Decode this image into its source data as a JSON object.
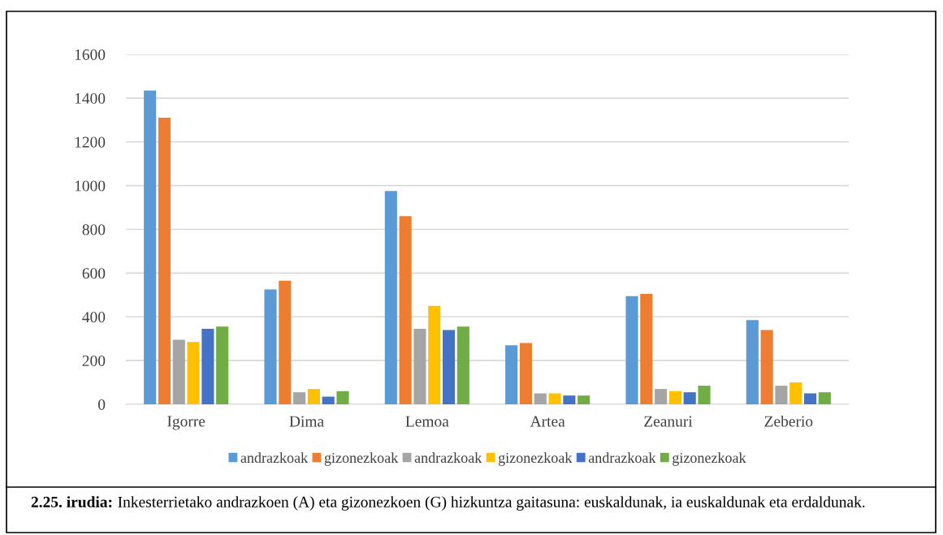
{
  "chart_data": {
    "type": "bar",
    "categories": [
      "Igorre",
      "Dima",
      "Lemoa",
      "Artea",
      "Zeanuri",
      "Zeberio"
    ],
    "series": [
      {
        "name": "andrazkoak",
        "color": "#5b9bd5",
        "values": [
          1435,
          525,
          975,
          270,
          495,
          385
        ]
      },
      {
        "name": "gizonezkoak",
        "color": "#ed7d31",
        "values": [
          1310,
          565,
          860,
          280,
          505,
          340
        ]
      },
      {
        "name": "andrazkoak",
        "color": "#a5a5a5",
        "values": [
          295,
          55,
          345,
          50,
          70,
          85
        ]
      },
      {
        "name": "gizonezkoak",
        "color": "#ffc000",
        "values": [
          285,
          70,
          450,
          50,
          60,
          100
        ]
      },
      {
        "name": "andrazkoak",
        "color": "#4472c4",
        "values": [
          345,
          35,
          340,
          40,
          55,
          50
        ]
      },
      {
        "name": "gizonezkoak",
        "color": "#70ad47",
        "values": [
          355,
          60,
          355,
          40,
          85,
          55
        ]
      }
    ],
    "ylim": [
      0,
      1600
    ],
    "yticks": [
      0,
      200,
      400,
      600,
      800,
      1000,
      1200,
      1400,
      1600
    ],
    "grid": "y",
    "legend": "bottom",
    "annotations": [
      "2.25. irudia:",
      "Inkesterrietako andrazkoen (A) eta gizonezkoen (G) hizkuntza gaitasuna: euskaldunak, ia euskaldunak eta erdaldunak."
    ]
  }
}
